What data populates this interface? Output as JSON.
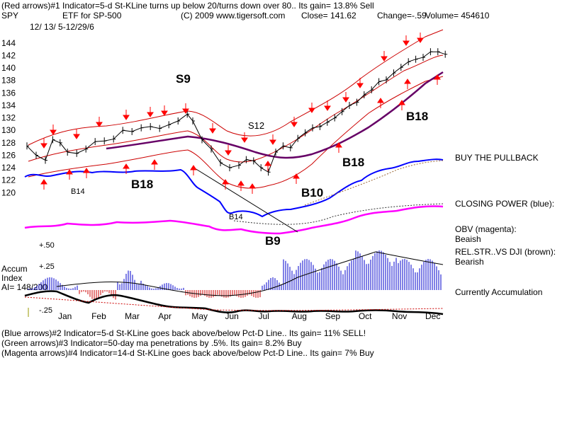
{
  "header": {
    "line1": "(Red arrows)#1 Indicator=5-d St-KLine turns up below 20/turns down over 80.. Its gain= 13.8% Sell",
    "ticker": "SPY",
    "desc": "ETF for SP-500",
    "copyright": "(C) 2009 www.tigersoft.com",
    "close": "Close=  141.62",
    "change": "Change=-.59",
    "volume": "Volume=  454610",
    "daterange": "12/ 13/ 5-12/29/6"
  },
  "right_labels": {
    "buy_pullback": "BUY THE PULLBACK",
    "closing_power": "CLOSING POWER (blue):",
    "obv_title": "OBV (magenta):",
    "obv_value": "Beaish",
    "relstr_title": "REL.STR..VS DJI (brown):",
    "relstr_value": "Bearish",
    "accum_status": "Currently Accumulation"
  },
  "accum_panel": {
    "title_line1": "Accum",
    "title_line2": "Index",
    "ai_value": "AI= 148/200",
    "tick_top": "+.50",
    "tick_mid": "+.25",
    "tick_bottom": "-.25"
  },
  "signals": {
    "s9": "S9",
    "s12": "S12",
    "b18_left": "B18",
    "b18_mid": "B18",
    "b18_right": "B18",
    "b14_a": "B14",
    "b14_b": "B14",
    "b10": "B10",
    "b9": "B9"
  },
  "footer": {
    "line1": "(Blue arrows)#2 Indicator=5-d St-KLine goes back above/below Pct-D Line.. Its gain= 11% SELL!",
    "line2": "(Green arrows)#3 Indicator=50-day ma penetrations by .5%. Its gain= 8.2% Buy",
    "line3": "(Magenta arrows)#4 Indicator=14-d St-KLine goes back above/below Pct-D Line.. Its gain= 7% Buy"
  },
  "colors": {
    "price": "#000000",
    "band": "#cc0000",
    "ma50": "#660066",
    "closing_power": "#0000ff",
    "obv": "#ff00ff",
    "accum_pos": "#0000cc",
    "accum_neg": "#cc0000",
    "relstr": "#000000",
    "arrow": "#ff0000"
  },
  "chart_data": {
    "type": "line",
    "title": "ETF for SP-500",
    "ylim": [
      118,
      145
    ],
    "yticks": [
      120,
      122,
      124,
      126,
      128,
      130,
      132,
      134,
      136,
      138,
      140,
      142,
      144
    ],
    "months": [
      "Jan",
      "Feb",
      "Mar",
      "Apr",
      "May",
      "Jun",
      "Jul",
      "Aug",
      "Sep",
      "Oct",
      "Nov",
      "Dec"
    ],
    "series": [
      {
        "name": "SPY",
        "points": [
          [
            0,
            127.5
          ],
          [
            5,
            126.0
          ],
          [
            10,
            125.2
          ],
          [
            14,
            128.5
          ],
          [
            18,
            128.0
          ],
          [
            22,
            126.5
          ],
          [
            27,
            126.3
          ],
          [
            32,
            127.0
          ],
          [
            37,
            128.2
          ],
          [
            42,
            128.3
          ],
          [
            47,
            128.6
          ],
          [
            52,
            130.0
          ],
          [
            57,
            129.8
          ],
          [
            62,
            130.4
          ],
          [
            67,
            130.6
          ],
          [
            72,
            130.3
          ],
          [
            77,
            130.9
          ],
          [
            82,
            131.5
          ],
          [
            87,
            132.6
          ],
          [
            90,
            131.5
          ],
          [
            95,
            128.5
          ],
          [
            100,
            127.0
          ],
          [
            105,
            124.8
          ],
          [
            110,
            124.0
          ],
          [
            115,
            124.4
          ],
          [
            119,
            125.3
          ],
          [
            123,
            125.1
          ],
          [
            127,
            124.0
          ],
          [
            131,
            123.3
          ],
          [
            135,
            126.5
          ],
          [
            139,
            127.5
          ],
          [
            143,
            127.2
          ],
          [
            147,
            128.7
          ],
          [
            151,
            129.6
          ],
          [
            155,
            130.4
          ],
          [
            159,
            130.6
          ],
          [
            163,
            131.3
          ],
          [
            167,
            132.0
          ],
          [
            171,
            133.0
          ],
          [
            175,
            134.0
          ],
          [
            179,
            134.5
          ],
          [
            183,
            135.7
          ],
          [
            187,
            136.5
          ],
          [
            191,
            137.8
          ],
          [
            195,
            138.1
          ],
          [
            199,
            139.2
          ],
          [
            203,
            140.1
          ],
          [
            207,
            141.0
          ],
          [
            211,
            141.4
          ],
          [
            215,
            141.7
          ],
          [
            219,
            142.6
          ],
          [
            223,
            142.6
          ],
          [
            227,
            142.2
          ]
        ]
      }
    ]
  }
}
